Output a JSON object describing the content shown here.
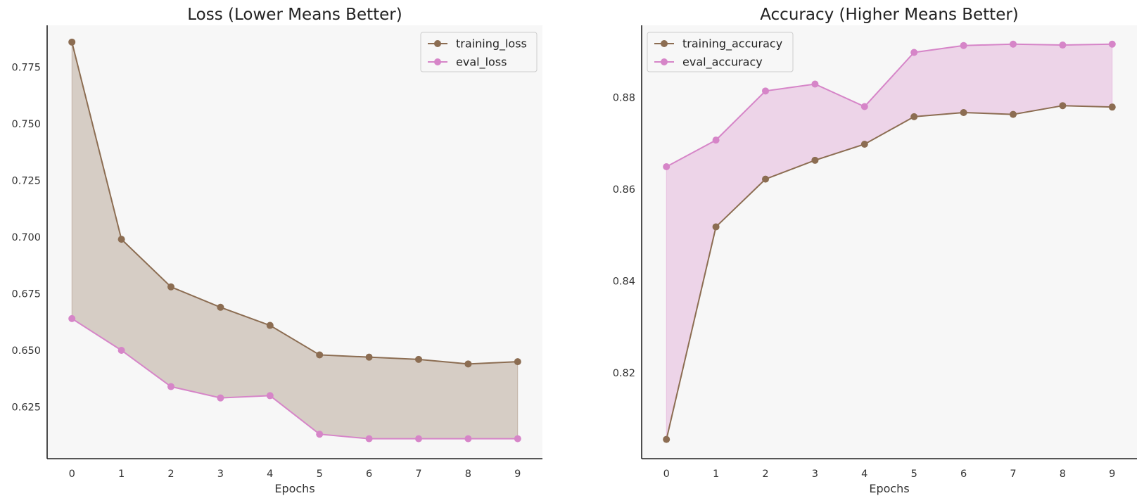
{
  "chart_data": [
    {
      "type": "line",
      "title": "Loss (Lower Means Better)",
      "xlabel": "Epochs",
      "ylabel": "",
      "x": [
        0,
        1,
        2,
        3,
        4,
        5,
        6,
        7,
        8,
        9
      ],
      "series": [
        {
          "name": "training_loss",
          "color": "#8c6d52",
          "values": [
            0.786,
            0.699,
            0.678,
            0.669,
            0.661,
            0.648,
            0.647,
            0.646,
            0.644,
            0.645
          ]
        },
        {
          "name": "eval_loss",
          "color": "#d685c8",
          "values": [
            0.664,
            0.65,
            0.634,
            0.629,
            0.63,
            0.613,
            0.611,
            0.611,
            0.611,
            0.611
          ]
        }
      ],
      "fill_between": {
        "color": "#8c6d52",
        "opacity": 0.3
      },
      "xlim": [
        -0.5,
        9.5
      ],
      "ylim": [
        0.6022,
        0.7934
      ],
      "yticks": [
        0.625,
        0.65,
        0.675,
        0.7,
        0.725,
        0.75,
        0.775
      ],
      "ytick_labels": [
        "0.625",
        "0.650",
        "0.675",
        "0.700",
        "0.725",
        "0.750",
        "0.775"
      ],
      "legend_position": "top-right",
      "grid": false
    },
    {
      "type": "line",
      "title": "Accuracy (Higher Means Better)",
      "xlabel": "Epochs",
      "ylabel": "",
      "x": [
        0,
        1,
        2,
        3,
        4,
        5,
        6,
        7,
        8,
        9
      ],
      "series": [
        {
          "name": "training_accuracy",
          "color": "#8c6d52",
          "values": [
            0.8055,
            0.8518,
            0.8622,
            0.8663,
            0.8698,
            0.8758,
            0.8767,
            0.8763,
            0.8782,
            0.8779
          ]
        },
        {
          "name": "eval_accuracy",
          "color": "#d685c8",
          "values": [
            0.8649,
            0.8707,
            0.8814,
            0.8829,
            0.878,
            0.8898,
            0.8913,
            0.8916,
            0.8914,
            0.8916
          ]
        }
      ],
      "fill_between": {
        "color": "#d685c8",
        "opacity": 0.3
      },
      "xlim": [
        -0.5,
        9.5
      ],
      "ylim": [
        0.8013,
        0.8957
      ],
      "yticks": [
        0.82,
        0.84,
        0.86,
        0.88
      ],
      "ytick_labels": [
        "0.82",
        "0.84",
        "0.86",
        "0.88"
      ],
      "legend_position": "top-left",
      "grid": false
    }
  ],
  "colors": {
    "plot_background": "#f7f7f7",
    "axis_line": "#222222",
    "legend_border": "#cccccc"
  }
}
